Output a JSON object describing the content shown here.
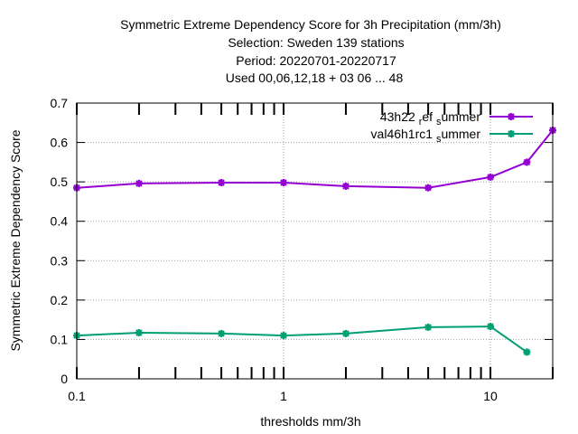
{
  "chart_data": {
    "type": "line",
    "title_lines": [
      "Symmetric Extreme Dependency Score  for 3h Precipitation (mm/3h)",
      "Selection: Sweden    139 stations",
      "Period: 20220701-20220717",
      "Used  00,06,12,18  + 03 06 ... 48"
    ],
    "xlabel": "thresholds mm/3h",
    "ylabel": "Symmetric Extreme Dependency Score",
    "x_scale": "log",
    "xlim": [
      0.1,
      20
    ],
    "ylim": [
      0,
      0.7
    ],
    "x_ticks": [
      0.1,
      1,
      10
    ],
    "x_tick_labels": [
      "0.1",
      "1",
      "10"
    ],
    "x_minor_ticks": [
      0.2,
      0.3,
      0.4,
      0.5,
      0.6,
      0.7,
      0.8,
      0.9,
      2,
      3,
      4,
      5,
      6,
      7,
      8,
      9,
      20
    ],
    "y_ticks": [
      0,
      0.1,
      0.2,
      0.3,
      0.4,
      0.5,
      0.6,
      0.7
    ],
    "y_tick_labels": [
      "0",
      "0.1",
      "0.2",
      "0.3",
      "0.4",
      "0.5",
      "0.6",
      "0.7"
    ],
    "grid": true,
    "legend_position": "top-right",
    "series": [
      {
        "name_main": "43h22_ref",
        "name_sub": "s",
        "name_rest": "ummer",
        "name_prefix": "43h22",
        "name_sub1": "r",
        "name_mid": "ef",
        "color": "#9400d3",
        "x": [
          0.1,
          0.2,
          0.5,
          1,
          2,
          5,
          10,
          15,
          20
        ],
        "values": [
          0.485,
          0.496,
          0.498,
          0.498,
          0.489,
          0.485,
          0.512,
          0.55,
          0.631
        ]
      },
      {
        "name_prefix": "val46h1rc1",
        "name_sub": "s",
        "name_rest": "ummer",
        "color": "#009e73",
        "x": [
          0.1,
          0.2,
          0.5,
          1,
          2,
          5,
          10,
          15
        ],
        "values": [
          0.11,
          0.117,
          0.115,
          0.11,
          0.115,
          0.131,
          0.133,
          0.068
        ]
      }
    ]
  }
}
